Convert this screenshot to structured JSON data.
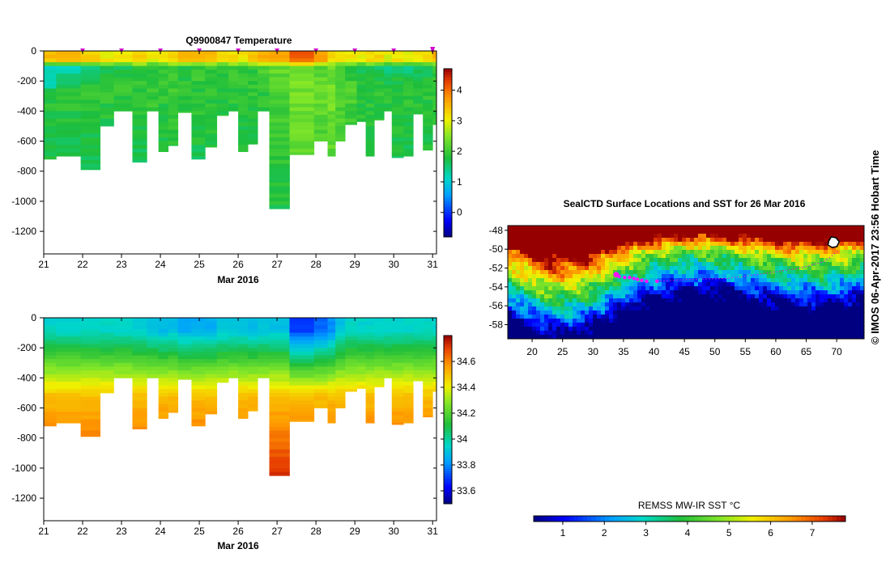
{
  "credit": "© IMOS 06-Apr-2017 23:56 Hobart Time",
  "chart_data": [
    {
      "id": "temperature",
      "type": "heatmap",
      "title": "Q9900847  Temperature",
      "xlabel": "Mar 2016",
      "xlim": [
        21,
        31.1
      ],
      "ylim": [
        -1350,
        0
      ],
      "xticks": [
        21,
        22,
        23,
        24,
        25,
        26,
        27,
        28,
        29,
        30,
        31
      ],
      "yticks": [
        0,
        -200,
        -400,
        -600,
        -800,
        -1000,
        -1200
      ],
      "colorbar": {
        "min": -0.8,
        "max": 4.7,
        "ticks": [
          0,
          1,
          2,
          3,
          4
        ]
      },
      "profile_markers": [
        22,
        23,
        24,
        25,
        26,
        27,
        28,
        29,
        30,
        31
      ],
      "profiles": [
        {
          "x0": 21.0,
          "x1": 21.32,
          "maxdepth": 720
        },
        {
          "x0": 21.32,
          "x1": 21.95,
          "maxdepth": 700
        },
        {
          "x0": 21.95,
          "x1": 22.45,
          "maxdepth": 790
        },
        {
          "x0": 22.45,
          "x1": 22.8,
          "maxdepth": 500
        },
        {
          "x0": 22.8,
          "x1": 23.28,
          "maxdepth": 400
        },
        {
          "x0": 23.28,
          "x1": 23.65,
          "maxdepth": 740
        },
        {
          "x0": 23.65,
          "x1": 23.95,
          "maxdepth": 400
        },
        {
          "x0": 23.95,
          "x1": 24.2,
          "maxdepth": 670
        },
        {
          "x0": 24.2,
          "x1": 24.45,
          "maxdepth": 630
        },
        {
          "x0": 24.45,
          "x1": 24.8,
          "maxdepth": 410
        },
        {
          "x0": 24.8,
          "x1": 25.15,
          "maxdepth": 720
        },
        {
          "x0": 25.15,
          "x1": 25.45,
          "maxdepth": 640
        },
        {
          "x0": 25.45,
          "x1": 25.75,
          "maxdepth": 430
        },
        {
          "x0": 25.75,
          "x1": 26.0,
          "maxdepth": 400
        },
        {
          "x0": 26.0,
          "x1": 26.25,
          "maxdepth": 670
        },
        {
          "x0": 26.25,
          "x1": 26.5,
          "maxdepth": 620
        },
        {
          "x0": 26.5,
          "x1": 26.8,
          "maxdepth": 400
        },
        {
          "x0": 26.8,
          "x1": 27.32,
          "maxdepth": 1050
        },
        {
          "x0": 27.32,
          "x1": 27.95,
          "maxdepth": 690
        },
        {
          "x0": 27.95,
          "x1": 28.3,
          "maxdepth": 600
        },
        {
          "x0": 28.3,
          "x1": 28.5,
          "maxdepth": 700
        },
        {
          "x0": 28.5,
          "x1": 28.75,
          "maxdepth": 600
        },
        {
          "x0": 28.75,
          "x1": 29.05,
          "maxdepth": 490
        },
        {
          "x0": 29.05,
          "x1": 29.28,
          "maxdepth": 470
        },
        {
          "x0": 29.28,
          "x1": 29.5,
          "maxdepth": 700
        },
        {
          "x0": 29.5,
          "x1": 29.75,
          "maxdepth": 460
        },
        {
          "x0": 29.75,
          "x1": 29.95,
          "maxdepth": 400
        },
        {
          "x0": 29.95,
          "x1": 30.25,
          "maxdepth": 710
        },
        {
          "x0": 30.25,
          "x1": 30.5,
          "maxdepth": 700
        },
        {
          "x0": 30.5,
          "x1": 30.75,
          "maxdepth": 420
        },
        {
          "x0": 30.75,
          "x1": 31.0,
          "maxdepth": 660
        },
        {
          "x0": 31.0,
          "x1": 31.1,
          "maxdepth": 490
        }
      ],
      "profile_surface_warm": [
        3.5,
        3.4,
        3.3,
        3.1,
        3.2,
        3.3,
        3.0,
        3.1,
        3.2,
        3.5,
        3.4,
        3.6,
        3.3,
        3.2,
        3.1,
        3.3,
        3.5,
        3.6,
        4.1,
        3.6,
        3.3,
        3.2,
        3.1,
        3.0,
        3.3,
        3.2,
        3.0,
        3.2,
        3.0,
        3.1,
        3.3,
        3.5
      ],
      "profile_mid_value": [
        1.0,
        1.2,
        1.5,
        1.6,
        1.7,
        1.9,
        1.8,
        2.0,
        1.9,
        1.8,
        2.0,
        1.9,
        1.8,
        1.9,
        1.8,
        1.9,
        2.1,
        2.3,
        2.4,
        2.2,
        2.3,
        2.0,
        1.8,
        1.7,
        1.6,
        1.5,
        1.4,
        1.5,
        1.5,
        1.6,
        1.6,
        1.9
      ],
      "profile_deep_value": [
        1.9,
        1.9,
        1.9,
        1.9,
        1.9,
        1.9,
        2.0,
        1.9,
        2.0,
        1.9,
        1.9,
        1.9,
        1.9,
        1.9,
        1.9,
        1.9,
        1.9,
        2.1,
        2.4,
        2.3,
        2.4,
        2.2,
        2.1,
        1.9,
        1.9,
        1.9,
        1.9,
        1.9,
        1.9,
        1.9,
        1.9,
        1.9
      ]
    },
    {
      "id": "salinity",
      "type": "heatmap",
      "title": "",
      "xlabel": "Mar 2016",
      "xlim": [
        21,
        31.1
      ],
      "ylim": [
        -1350,
        0
      ],
      "xticks": [
        21,
        22,
        23,
        24,
        25,
        26,
        27,
        28,
        29,
        30,
        31
      ],
      "yticks": [
        0,
        -200,
        -400,
        -600,
        -800,
        -1000,
        -1200
      ],
      "colorbar": {
        "min": 33.5,
        "max": 34.8,
        "ticks": [
          33.6,
          33.8,
          34,
          34.2,
          34.4,
          34.6
        ]
      },
      "surface_value": [
        33.95,
        33.95,
        33.95,
        33.95,
        33.95,
        33.92,
        33.9,
        33.88,
        33.9,
        33.85,
        33.85,
        33.85,
        33.9,
        33.9,
        33.9,
        33.88,
        33.9,
        33.9,
        33.7,
        33.75,
        33.8,
        33.9,
        33.95,
        33.95,
        33.95,
        33.95,
        33.95,
        33.95,
        33.95,
        33.95,
        33.95,
        33.95
      ]
    },
    {
      "id": "sst-map",
      "type": "heatmap",
      "title": "SealCTD Surface Locations and SST for 26 Mar 2016",
      "xlabel": "",
      "xlim": [
        16,
        74.5
      ],
      "ylim": [
        -59.5,
        -47.5
      ],
      "xticks": [
        20,
        25,
        30,
        35,
        40,
        45,
        50,
        55,
        60,
        65,
        70
      ],
      "yticks": [
        -48,
        -50,
        -52,
        -54,
        -56,
        -58
      ],
      "colorbar": {
        "label": "REMSS MW-IR SST °C",
        "min": 0.3,
        "max": 7.8,
        "ticks": [
          1,
          2,
          3,
          4,
          5,
          6,
          7
        ]
      },
      "track_points": [
        {
          "lon": 33.8,
          "lat": -52.7
        },
        {
          "lon": 34.3,
          "lat": -52.9
        },
        {
          "lon": 35.2,
          "lat": -53.0
        },
        {
          "lon": 36.0,
          "lat": -53.0
        },
        {
          "lon": 36.7,
          "lat": -53.1
        },
        {
          "lon": 37.3,
          "lat": -53.2
        },
        {
          "lon": 38.0,
          "lat": -53.3
        },
        {
          "lon": 38.8,
          "lat": -53.4
        },
        {
          "lon": 40.5,
          "lat": -53.4
        }
      ],
      "track_path": [
        {
          "lon": 40.5,
          "lat": -53.4
        },
        {
          "lon": 46,
          "lat": -53.2
        },
        {
          "lon": 52,
          "lat": -53.1
        },
        {
          "lon": 58,
          "lat": -52.6
        },
        {
          "lon": 64,
          "lat": -52.0
        },
        {
          "lon": 68,
          "lat": -51.3
        },
        {
          "lon": 70.2,
          "lat": -50.2
        }
      ],
      "island": {
        "lon": 69.5,
        "lat": -49.3
      }
    }
  ]
}
